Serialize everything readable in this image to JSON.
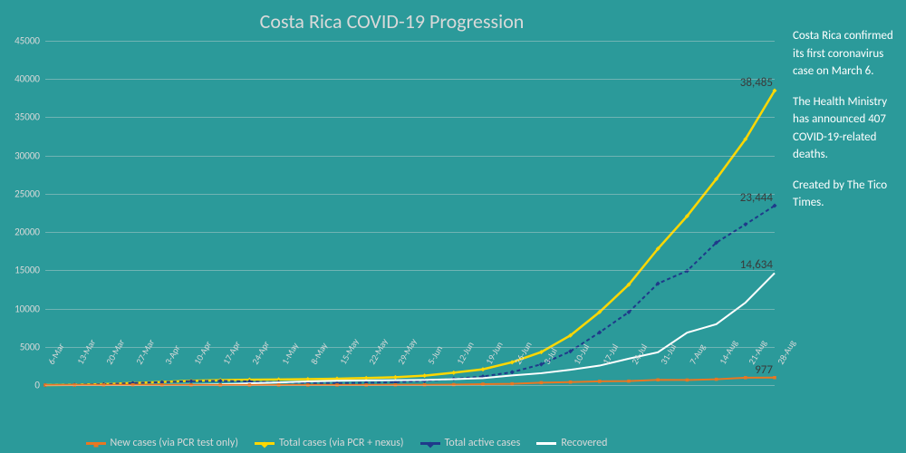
{
  "title": "Costa Rica COVID-19 Progression",
  "background_color": "#2b9a9a",
  "text_color": "#d9d9d9",
  "grid_color": "rgba(217,217,217,0.4)",
  "endlabel_color": "#3a3a3a",
  "chart": {
    "type": "line",
    "ylim": [
      0,
      45000
    ],
    "ytick_step": 5000,
    "x_labels": [
      "6-Mar",
      "13-Mar",
      "20-Mar",
      "27-Mar",
      "3-Apr",
      "10-Apr",
      "17-Apr",
      "24-Apr",
      "1-May",
      "8-May",
      "15-May",
      "22-May",
      "29-May",
      "5-Jun",
      "12-Jun",
      "19-Jun",
      "26-Jun",
      "3-Jul",
      "10-Jul",
      "17-Jul",
      "24-Jul",
      "31-Jul",
      "7-Aug",
      "14-Aug",
      "21-Aug",
      "28-Aug"
    ],
    "series": [
      {
        "name": "Total cases (via PCR + nexus)",
        "color": "#ffd700",
        "marker": "diamond",
        "width": 2.5,
        "end_value": 38485,
        "data": [
          1,
          35,
          113,
          263,
          396,
          558,
          642,
          693,
          725,
          773,
          830,
          911,
          1022,
          1228,
          1612,
          2058,
          2979,
          4311,
          6485,
          9546,
          13129,
          17820,
          22081,
          26931,
          32134,
          38485
        ]
      },
      {
        "name": "Total active cases",
        "color": "#1f3a8a",
        "marker": "diamond",
        "dash": "4 3",
        "width": 2,
        "end_value": 23444,
        "data": [
          1,
          35,
          111,
          260,
          378,
          513,
          541,
          468,
          369,
          279,
          256,
          297,
          370,
          548,
          815,
          1120,
          1678,
          2712,
          4413,
          6884,
          9527,
          13267,
          14924,
          18607,
          21003,
          23444
        ]
      },
      {
        "name": "Recovered",
        "color": "#ffffff",
        "marker": "none",
        "width": 2,
        "end_value": 14634,
        "data": [
          0,
          0,
          2,
          3,
          18,
          42,
          97,
          216,
          338,
          480,
          559,
          600,
          634,
          661,
          769,
          902,
          1264,
          1547,
          1995,
          2541,
          3448,
          4280,
          6851,
          7954,
          10775,
          14634
        ]
      },
      {
        "name": "New cases (via PCR test only)",
        "color": "#e87722",
        "marker": "square",
        "width": 2,
        "end_value": 977,
        "data": [
          1,
          9,
          16,
          32,
          19,
          19,
          8,
          8,
          9,
          11,
          10,
          8,
          25,
          37,
          56,
          119,
          165,
          310,
          386,
          484,
          515,
          680,
          660,
          754,
          968,
          977
        ]
      }
    ]
  },
  "legend": [
    {
      "label": "New cases (via PCR test only)",
      "color": "#e87722",
      "marker": "square"
    },
    {
      "label": "Total cases (via PCR + nexus)",
      "color": "#ffd700",
      "marker": "diamond"
    },
    {
      "label": "Total active cases",
      "color": "#1f3a8a",
      "marker": "diamond"
    },
    {
      "label": "Recovered",
      "color": "#ffffff",
      "marker": "none"
    }
  ],
  "sidebar": {
    "p1": "Costa Rica confirmed its first coronavirus case on March 6.",
    "p2": "The Health Ministry has announced 407 COVID-19-related deaths.",
    "p3": "Created by The Tico Times."
  }
}
